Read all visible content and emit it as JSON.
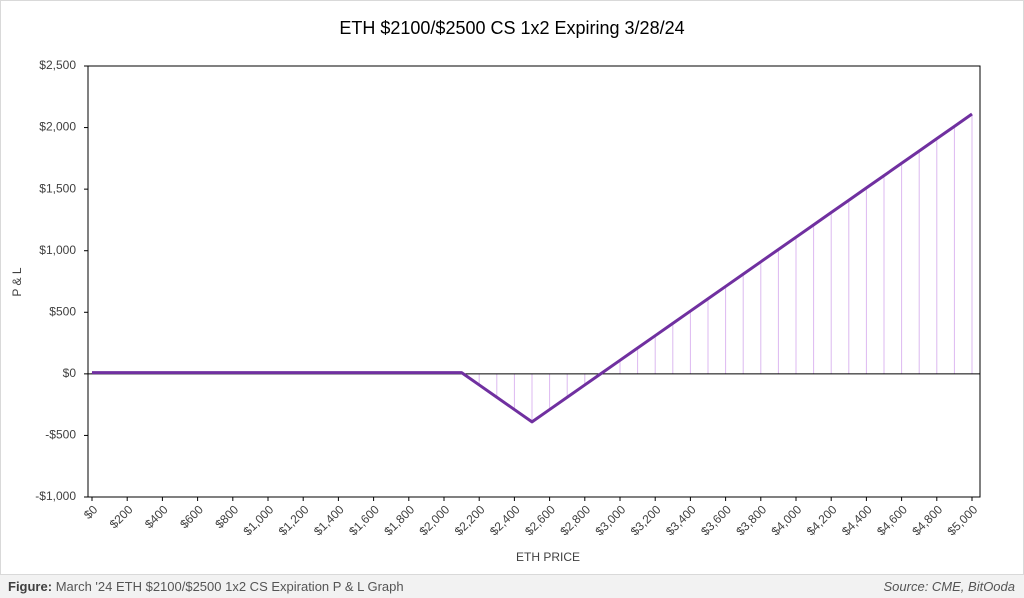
{
  "chart_data": {
    "type": "line",
    "title": "ETH $2100/$2500 CS 1x2 Expiring 3/28/24",
    "xlabel": "ETH PRICE",
    "ylabel": "P & L",
    "x": [
      0,
      100,
      200,
      300,
      400,
      500,
      600,
      700,
      800,
      900,
      1000,
      1100,
      1200,
      1300,
      1400,
      1500,
      1600,
      1700,
      1800,
      1900,
      2000,
      2100,
      2200,
      2300,
      2400,
      2500,
      2600,
      2700,
      2800,
      2900,
      3000,
      3100,
      3200,
      3300,
      3400,
      3500,
      3600,
      3700,
      3800,
      3900,
      4000,
      4100,
      4200,
      4300,
      4400,
      4500,
      4600,
      4700,
      4800,
      4900,
      5000
    ],
    "values": [
      10,
      10,
      10,
      10,
      10,
      10,
      10,
      10,
      10,
      10,
      10,
      10,
      10,
      10,
      10,
      10,
      10,
      10,
      10,
      10,
      10,
      10,
      -90,
      -190,
      -290,
      -390,
      -290,
      -190,
      -90,
      10,
      110,
      210,
      310,
      410,
      510,
      610,
      710,
      810,
      910,
      1010,
      1110,
      1210,
      1310,
      1410,
      1510,
      1610,
      1710,
      1810,
      1910,
      2010,
      2110
    ],
    "color": "#7030a0",
    "drop_line_color": "#dcb8f0",
    "xlim": [
      0,
      5000
    ],
    "xticks": [
      {
        "value": 0,
        "label": "$0"
      },
      {
        "value": 200,
        "label": "$200"
      },
      {
        "value": 400,
        "label": "$400"
      },
      {
        "value": 600,
        "label": "$600"
      },
      {
        "value": 800,
        "label": "$800"
      },
      {
        "value": 1000,
        "label": "$1,000"
      },
      {
        "value": 1200,
        "label": "$1,200"
      },
      {
        "value": 1400,
        "label": "$1,400"
      },
      {
        "value": 1600,
        "label": "$1,600"
      },
      {
        "value": 1800,
        "label": "$1,800"
      },
      {
        "value": 2000,
        "label": "$2,000"
      },
      {
        "value": 2200,
        "label": "$2,200"
      },
      {
        "value": 2400,
        "label": "$2,400"
      },
      {
        "value": 2600,
        "label": "$2,600"
      },
      {
        "value": 2800,
        "label": "$2,800"
      },
      {
        "value": 3000,
        "label": "$3,000"
      },
      {
        "value": 3200,
        "label": "$3,200"
      },
      {
        "value": 3400,
        "label": "$3,400"
      },
      {
        "value": 3600,
        "label": "$3,600"
      },
      {
        "value": 3800,
        "label": "$3,800"
      },
      {
        "value": 4000,
        "label": "$4,000"
      },
      {
        "value": 4200,
        "label": "$4,200"
      },
      {
        "value": 4400,
        "label": "$4,400"
      },
      {
        "value": 4600,
        "label": "$4,600"
      },
      {
        "value": 4800,
        "label": "$4,800"
      },
      {
        "value": 5000,
        "label": "$5,000"
      }
    ],
    "ylim": [
      -1000,
      2500
    ],
    "yticks": [
      {
        "value": -1000,
        "label": "-$1,000"
      },
      {
        "value": -500,
        "label": "-$500"
      },
      {
        "value": 0,
        "label": "$0"
      },
      {
        "value": 500,
        "label": "$500"
      },
      {
        "value": 1000,
        "label": "$1,000"
      },
      {
        "value": 1500,
        "label": "$1,500"
      },
      {
        "value": 2000,
        "label": "$2,000"
      },
      {
        "value": 2500,
        "label": "$2,500"
      }
    ],
    "grid": false
  },
  "footer": {
    "label": "Figure:",
    "caption": "March '24 ETH $2100/$2500 1x2 CS Expiration P & L Graph",
    "source": "Source: CME, BitOoda"
  }
}
